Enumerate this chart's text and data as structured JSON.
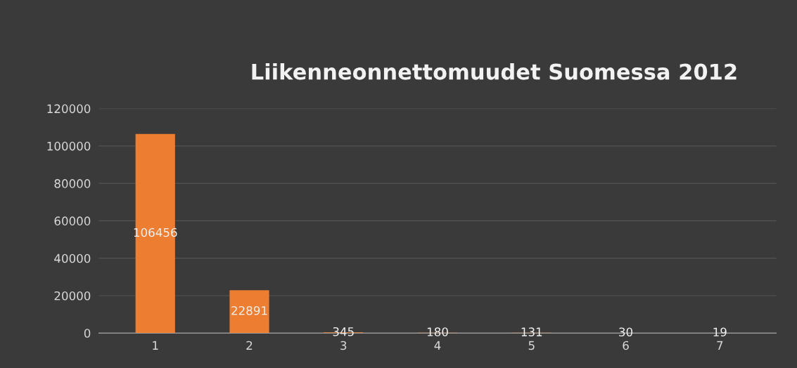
{
  "chart_data": {
    "type": "bar",
    "title": "Liikenneonnettomuudet Suomessa 2012",
    "categories": [
      "1",
      "2",
      "3",
      "4",
      "5",
      "6",
      "7"
    ],
    "values": [
      106456,
      22891,
      345,
      180,
      131,
      30,
      19
    ],
    "color": "#ed7d31",
    "ylim": [
      0,
      120000
    ],
    "yticks": [
      0,
      20000,
      40000,
      60000,
      80000,
      100000,
      120000
    ],
    "grid": "y",
    "data_labels": true
  }
}
